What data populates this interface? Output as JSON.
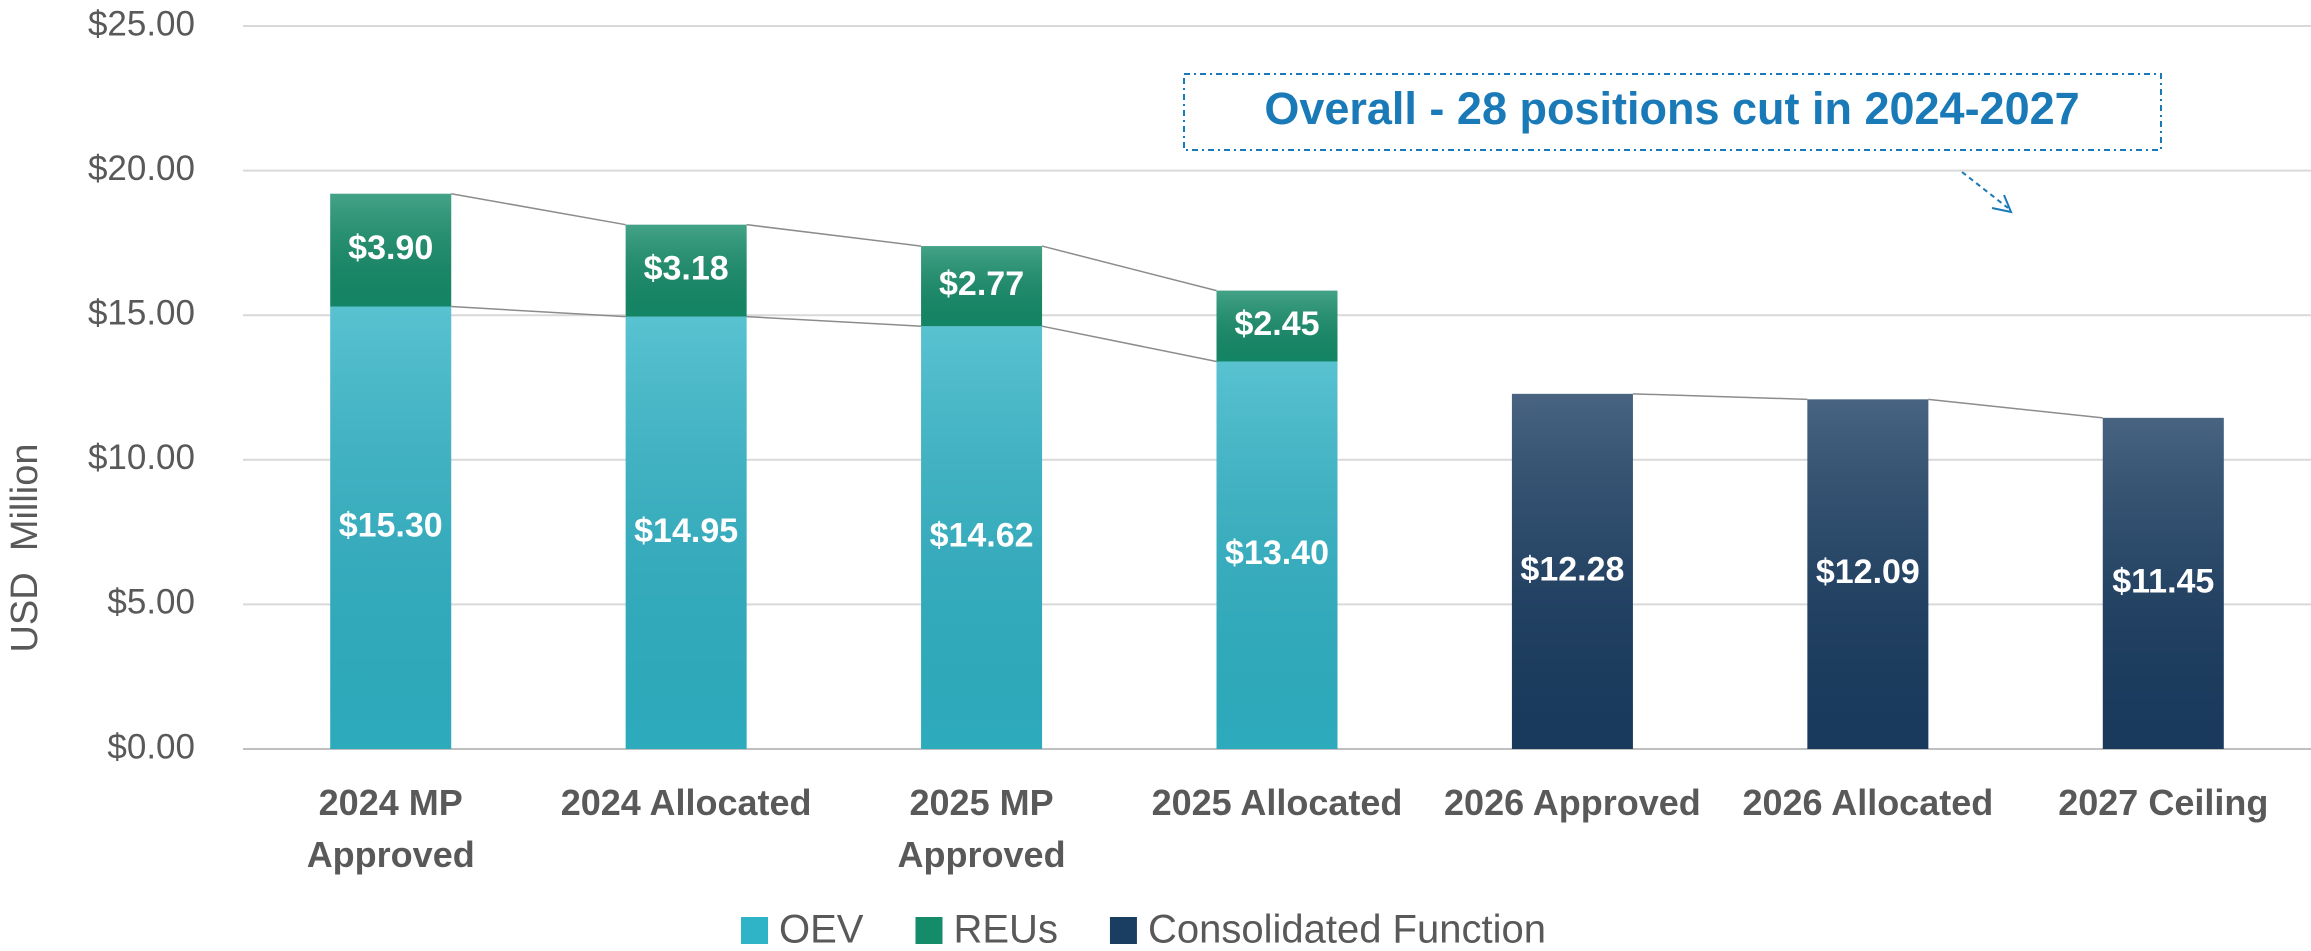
{
  "chart_data": {
    "type": "stacked_bar",
    "y_label": "USD  Million",
    "annotation": "Overall - 28 positions cut in 2024-2027",
    "categories": [
      "2024 MP Approved",
      "2024 Allocated",
      "2025 MP Approved",
      "2025 Allocated",
      "2026 Approved",
      "2026 Allocated",
      "2027 Ceiling"
    ],
    "series": [
      {
        "name": "OEV",
        "color": "#2fb3c6",
        "values": [
          15.3,
          14.95,
          14.62,
          13.4,
          null,
          null,
          null
        ],
        "value_labels": [
          "$15.30",
          "$14.95",
          "$14.62",
          "$13.40",
          null,
          null,
          null
        ]
      },
      {
        "name": "REUs",
        "color": "#158c69",
        "values": [
          3.9,
          3.18,
          2.77,
          2.45,
          null,
          null,
          null
        ],
        "value_labels": [
          "$3.90",
          "$3.18",
          "$2.77",
          "$2.45",
          null,
          null,
          null
        ]
      },
      {
        "name": "Consolidated Function",
        "color": "#1a3d62",
        "values": [
          null,
          null,
          null,
          null,
          12.28,
          12.09,
          11.45
        ],
        "value_labels": [
          null,
          null,
          null,
          null,
          "$12.28",
          "$12.09",
          "$11.45"
        ]
      }
    ],
    "ylim": [
      0,
      25
    ],
    "yticks": [
      {
        "value": 0,
        "label": "$0.00"
      },
      {
        "value": 5,
        "label": "$5.00"
      },
      {
        "value": 10,
        "label": "$10.00"
      },
      {
        "value": 15,
        "label": "$15.00"
      },
      {
        "value": 20,
        "label": "$20.00"
      },
      {
        "value": 25,
        "label": "$25.00"
      }
    ],
    "grid": true
  }
}
